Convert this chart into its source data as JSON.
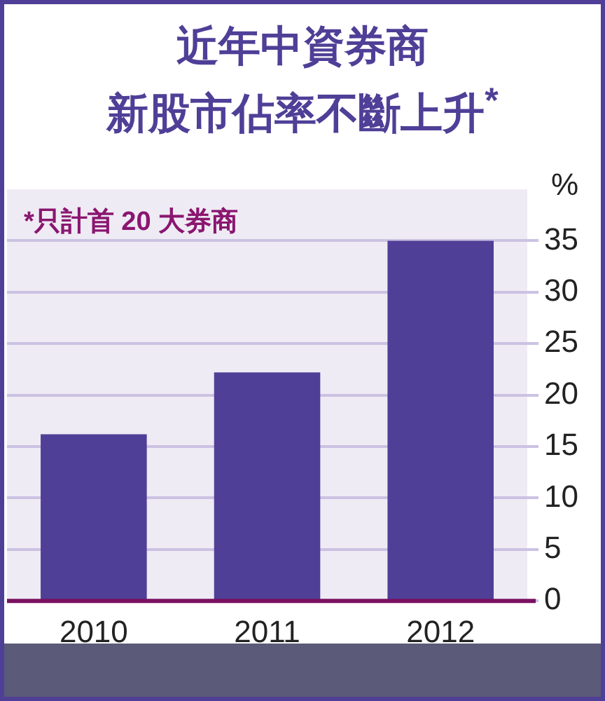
{
  "chart_data": {
    "type": "bar",
    "title": "近年中資券商",
    "subtitle": "新股市佔率不斷上升$^{*}$",
    "ylabel": "%",
    "annotations": [
      "*只計首 20 大券商"
    ],
    "categories": [
      "2010",
      "2011",
      "2012"
    ],
    "values": [
      16.2,
      22.2,
      35
    ],
    "color": "#4f3f97",
    "ylim": [
      0,
      40
    ],
    "yticks": [
      0,
      5,
      10,
      15,
      20,
      25,
      30,
      35
    ],
    "grid": "y"
  }
}
